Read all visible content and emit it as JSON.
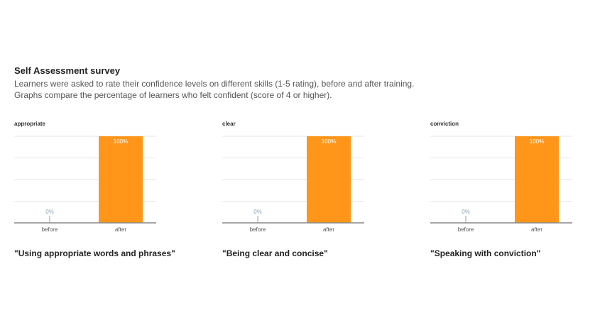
{
  "header": {
    "title": "Self Assessment survey",
    "line1": "Learners were asked to rate their confidence levels on different skills (1-5 rating), before and after training.",
    "line2": "Graphs compare the percentage of learners who felt confident (score of 4 or higher)."
  },
  "colors": {
    "after": "#ff9619",
    "before": "#8fa3b2"
  },
  "chart_data": [
    {
      "type": "bar",
      "title": "appropriate",
      "caption": "\"Using appropriate words and phrases\"",
      "categories": [
        "before",
        "after"
      ],
      "values": [
        0,
        100
      ],
      "value_labels": [
        "0%",
        "100%"
      ],
      "ylim": [
        0,
        100
      ],
      "grid": true
    },
    {
      "type": "bar",
      "title": "clear",
      "caption": "\"Being clear and concise\"",
      "categories": [
        "before",
        "after"
      ],
      "values": [
        0,
        100
      ],
      "value_labels": [
        "0%",
        "100%"
      ],
      "ylim": [
        0,
        100
      ],
      "grid": true
    },
    {
      "type": "bar",
      "title": "conviction",
      "caption": "\"Speaking with conviction\"",
      "categories": [
        "before",
        "after"
      ],
      "values": [
        0,
        100
      ],
      "value_labels": [
        "0%",
        "100%"
      ],
      "ylim": [
        0,
        100
      ],
      "grid": true
    }
  ]
}
